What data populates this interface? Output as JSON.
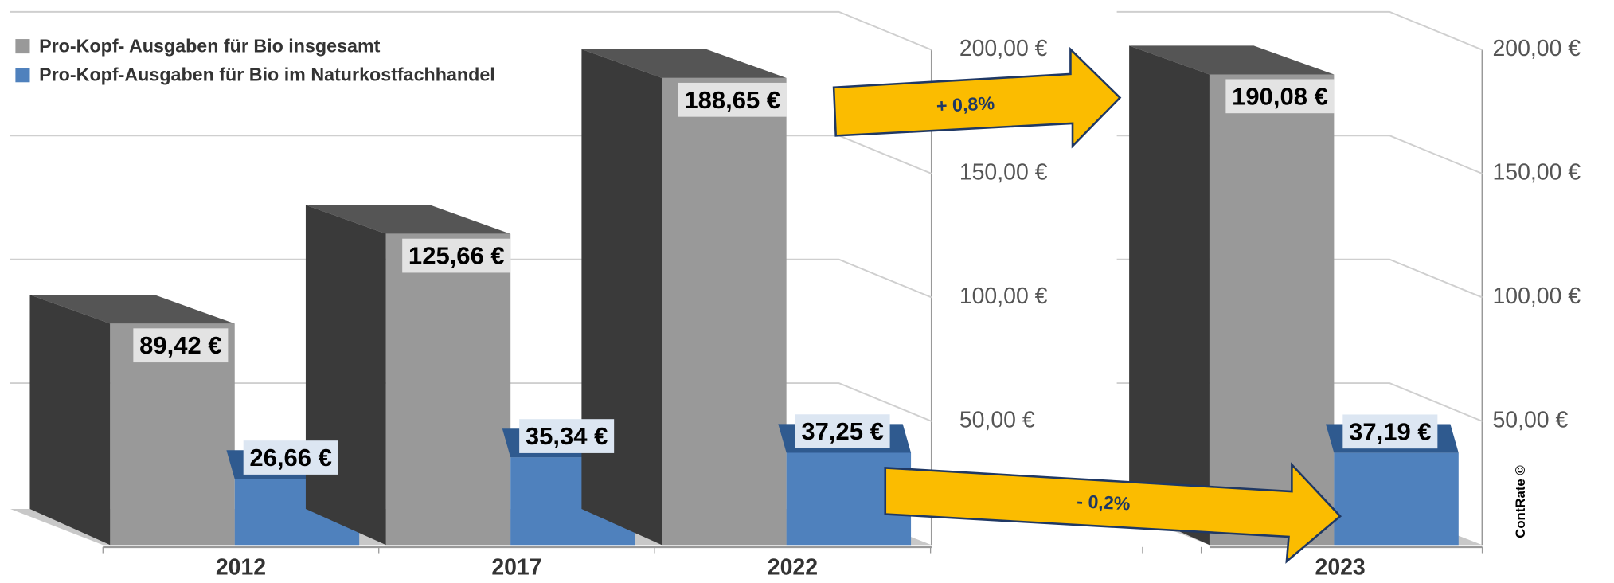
{
  "chart_data": [
    {
      "type": "bar3d",
      "categories": [
        "2012",
        "2017",
        "2022"
      ],
      "series": [
        {
          "name": "Pro-Kopf- Ausgaben für Bio insgesamt",
          "color": "#999999",
          "values": [
            89.42,
            125.66,
            188.65
          ],
          "value_labels": [
            "89,42 €",
            "125,66 €",
            "188,65 €"
          ]
        },
        {
          "name": "Pro-Kopf-Ausgaben für Bio im Naturkostfachhandel",
          "color": "#4f81bd",
          "values": [
            26.66,
            35.34,
            37.25
          ],
          "value_labels": [
            "26,66 €",
            "35,34 €",
            "37,25 €"
          ]
        }
      ],
      "ylim": [
        0,
        216
      ],
      "yticks": [
        {
          "value": 50,
          "label": "50,00 €"
        },
        {
          "value": 100,
          "label": "100,00 €"
        },
        {
          "value": 150,
          "label": "150,00 €"
        },
        {
          "value": 200,
          "label": "200,00 €"
        }
      ],
      "grid": true,
      "legend": "top-left"
    },
    {
      "type": "bar3d",
      "categories": [
        "2023"
      ],
      "series": [
        {
          "color": "#999999",
          "values": [
            190.08
          ],
          "value_labels": [
            "190,08 €"
          ]
        },
        {
          "color": "#4f81bd",
          "values": [
            37.19
          ],
          "value_labels": [
            "37,19 €"
          ]
        }
      ],
      "ylim": [
        0,
        216
      ],
      "yticks": [
        {
          "value": 50,
          "label": "50,00 €"
        },
        {
          "value": 100,
          "label": "100,00 €"
        },
        {
          "value": 150,
          "label": "150,00 €"
        },
        {
          "value": 200,
          "label": "200,00 €"
        }
      ],
      "grid": true
    }
  ],
  "annotations": [
    "+ 0,8%",
    "- 0,2%"
  ],
  "credit": "ContRate ©"
}
